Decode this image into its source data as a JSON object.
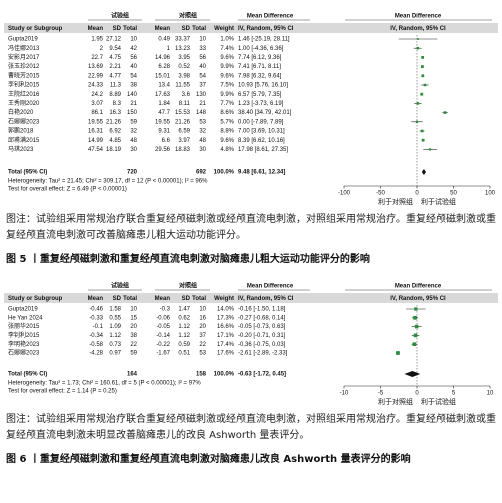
{
  "figures": [
    {
      "header": {
        "group1": "试验组",
        "group2": "对照组",
        "md_table": "Mean Difference",
        "md_plot": "Mean Difference"
      },
      "columns": [
        "Study or Subgroup",
        "Mean",
        "SD",
        "Total",
        "Mean",
        "SD",
        "Total",
        "Weight",
        "IV, Random, 95% CI",
        "IV, Random, 95% CI"
      ],
      "rows": [
        {
          "cells": [
            "Gupta2019",
            "1.95",
            "27.12",
            "10",
            "0.49",
            "33.37",
            "10",
            "1.0%",
            "1.46 [-25.19, 28.11]"
          ],
          "ci": [
            1.46,
            -25.19,
            28.11
          ]
        },
        {
          "cells": [
            "冯佳娜2013",
            "2",
            "9.54",
            "42",
            "1",
            "13.23",
            "33",
            "7.4%",
            "1.00 [-4.36, 6.36]"
          ],
          "ci": [
            1.0,
            -4.36,
            6.36
          ]
        },
        {
          "cells": [
            "安影月2017",
            "22.7",
            "4.75",
            "56",
            "14.96",
            "3.95",
            "56",
            "9.6%",
            "7.74 [6.12, 9.36]"
          ],
          "ci": [
            7.74,
            6.12,
            9.36
          ]
        },
        {
          "cells": [
            "张玉珍2012",
            "13.69",
            "2.21",
            "40",
            "6.28",
            "0.52",
            "40",
            "9.9%",
            "7.41 [6.71, 8.11]"
          ],
          "ci": [
            7.41,
            6.71,
            8.11
          ]
        },
        {
          "cells": [
            "曹晓芳2015",
            "22.99",
            "4.77",
            "54",
            "15.01",
            "3.98",
            "54",
            "9.6%",
            "7.98 [6.32, 9.64]"
          ],
          "ci": [
            7.98,
            6.32,
            9.64
          ]
        },
        {
          "cells": [
            "李钊利2015",
            "24.33",
            "11.3",
            "38",
            "13.4",
            "11.55",
            "37",
            "7.5%",
            "10.93 [5.76, 16.10]"
          ],
          "ci": [
            10.93,
            5.76,
            16.1
          ]
        },
        {
          "cells": [
            "王院红2016",
            "24.2",
            "8.89",
            "140",
            "17.63",
            "3.6",
            "130",
            "9.9%",
            "6.57 [5.79, 7.35]"
          ],
          "ci": [
            6.57,
            5.79,
            7.35
          ]
        },
        {
          "cells": [
            "王秀刚2020",
            "3.07",
            "8.3",
            "21",
            "1.84",
            "8.11",
            "21",
            "7.7%",
            "1.23 [-3.73, 6.19]"
          ],
          "ci": [
            1.23,
            -3.73,
            6.19
          ]
        },
        {
          "cells": [
            "白艳2020",
            "86.1",
            "16.3",
            "150",
            "47.7",
            "15.53",
            "148",
            "8.6%",
            "38.40 [34.79, 42.01]"
          ],
          "ci": [
            38.4,
            34.79,
            42.01
          ]
        },
        {
          "cells": [
            "石娜娜2023",
            "19.55",
            "21.26",
            "59",
            "19.55",
            "21.26",
            "53",
            "5.7%",
            "0.00 [-7.89, 7.89]"
          ],
          "ci": [
            0,
            -7.89,
            7.89
          ]
        },
        {
          "cells": [
            "郭鹏2018",
            "16.31",
            "6.92",
            "32",
            "9.31",
            "6.59",
            "32",
            "8.8%",
            "7.00 [3.69, 10.31]"
          ],
          "ci": [
            7.0,
            3.69,
            10.31
          ]
        },
        {
          "cells": [
            "邱甫满2015",
            "14.99",
            "4.85",
            "48",
            "6.6",
            "3.97",
            "48",
            "9.6%",
            "8.39 [6.62, 10.16]"
          ],
          "ci": [
            8.39,
            6.62,
            10.16
          ]
        },
        {
          "cells": [
            "马琪2023",
            "47.54",
            "18.19",
            "30",
            "29.56",
            "18.83",
            "30",
            "4.8%",
            "17.98 [8.61, 27.35]"
          ],
          "ci": [
            17.98,
            8.61,
            27.35
          ]
        }
      ],
      "total": {
        "label": "Total (95% CI)",
        "n1": "720",
        "n2": "692",
        "weight": "100.0%",
        "md": "9.48 [6.61, 12.34]",
        "ci": [
          9.48,
          6.61,
          12.34
        ]
      },
      "heterogeneity": "Heterogeneity: Tau² = 21.45; Chi² = 309.17, df = 12 (P < 0.00001); I² = 96%",
      "overall": "Test for overall effect: Z = 6.49 (P < 0.00001)",
      "xlim": [
        -100,
        100
      ],
      "xticks": [
        -100,
        -50,
        0,
        50,
        100
      ],
      "favours_left": "利于对照组",
      "favours_right": "利于试验组",
      "caption": "图注：试验组采用常规治疗联合重复经颅磁刺激或经颅直流电刺激，对照组采用常规治疗。重复经颅磁刺激或重复经颅直流电刺激可改善脑瘫患儿粗大运动功能评分。",
      "title": "图 5 丨重复经颅磁刺激和重复经颅直流电刺激对脑瘫患儿粗大运动功能评分的影响"
    },
    {
      "header": {
        "group1": "试验组",
        "group2": "对照组",
        "md_table": "Mean Difference",
        "md_plot": "Mean Difference"
      },
      "columns": [
        "Study or Subgroup",
        "Mean",
        "SD",
        "Total",
        "Mean",
        "SD",
        "Total",
        "Weight",
        "IV, Random, 95% CI",
        "IV, Random, 95% CI"
      ],
      "rows": [
        {
          "cells": [
            "Gupta2019",
            "-0.46",
            "1.58",
            "10",
            "-0.3",
            "1.47",
            "10",
            "14.0%",
            "-0.16 [-1.50, 1.18]"
          ],
          "ci": [
            -0.16,
            -1.5,
            1.18
          ]
        },
        {
          "cells": [
            "He Yan 2024",
            "-0.33",
            "0.55",
            "15",
            "-0.06",
            "0.62",
            "16",
            "17.3%",
            "-0.27 [-0.68, 0.14]"
          ],
          "ci": [
            -0.27,
            -0.68,
            0.14
          ]
        },
        {
          "cells": [
            "张丽华2015",
            "-0.1",
            "1.09",
            "20",
            "-0.05",
            "1.12",
            "20",
            "16.6%",
            "-0.05 [-0.73, 0.63]"
          ],
          "ci": [
            -0.05,
            -0.73,
            0.63
          ]
        },
        {
          "cells": [
            "李钊利2015",
            "-0.34",
            "1.12",
            "38",
            "-0.14",
            "1.12",
            "37",
            "17.1%",
            "-0.20 [-0.71, 0.31]"
          ],
          "ci": [
            -0.2,
            -0.71,
            0.31
          ]
        },
        {
          "cells": [
            "李明艳2023",
            "-0.58",
            "0.73",
            "22",
            "-0.22",
            "0.59",
            "22",
            "17.4%",
            "-0.36 [-0.75, 0.03]"
          ],
          "ci": [
            -0.36,
            -0.75,
            0.03
          ]
        },
        {
          "cells": [
            "石娜娜2023",
            "-4.28",
            "0.97",
            "59",
            "-1.67",
            "0.51",
            "53",
            "17.6%",
            "-2.61 [-2.89, -2.33]"
          ],
          "ci": [
            -2.61,
            -2.89,
            -2.33
          ]
        }
      ],
      "total": {
        "label": "Total (95% CI)",
        "n1": "164",
        "n2": "158",
        "weight": "100.0%",
        "md": "-0.63 [-1.72, 0.45]",
        "ci": [
          -0.63,
          -1.72,
          0.45
        ]
      },
      "heterogeneity": "Heterogeneity: Tau² = 1.73; Chi² = 160.61, df = 5 (P < 0.00001); I² = 97%",
      "overall": "Test for overall effect: Z = 1.14 (P = 0.25)",
      "xlim": [
        -10,
        10
      ],
      "xticks": [
        -10,
        -5,
        0,
        5,
        10
      ],
      "favours_left": "利于对照组",
      "favours_right": "利于试验组",
      "caption": "图注：试验组采用常规治疗联合重复经颅磁刺激或经颅直流电刺激，对照组采用常规治疗。重复经颅磁刺激或重复经颅直流电刺激未明显改善脑瘫患儿的改良 Ashworth 量表评分。",
      "title": "图 6 丨重复经颅磁刺激和重复经颅直流电刺激对脑瘫患儿改良 Ashworth 量表评分的影响"
    }
  ]
}
